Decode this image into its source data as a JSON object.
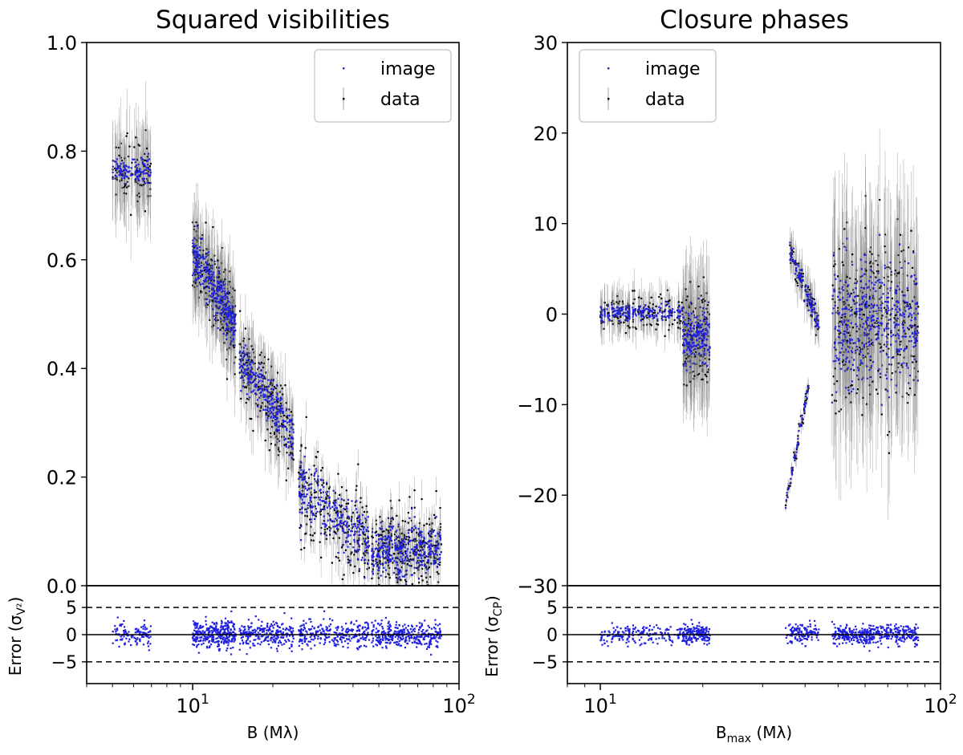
{
  "chart_data": [
    {
      "type": "scatter",
      "title": "Squared visibilities",
      "xlabel": "B (Mλ)",
      "ylabel": "",
      "xscale": "log",
      "xlim": [
        4.0,
        100
      ],
      "ylim": [
        0.0,
        1.0
      ],
      "y_ticks": [
        "0.0",
        "0.2",
        "0.4",
        "0.6",
        "0.8",
        "1.0"
      ],
      "y_tick_values": [
        0.0,
        0.2,
        0.4,
        0.6,
        0.8,
        1.0
      ],
      "x_ticks": [
        {
          "base": "10",
          "exp": "1",
          "value": 10
        },
        {
          "base": "10",
          "exp": "2",
          "value": 100
        }
      ],
      "legend": {
        "position": "top-right",
        "entries": [
          {
            "label": "image",
            "color": "#1f1fe0"
          },
          {
            "label": "data",
            "color": "#000000"
          }
        ]
      },
      "series": [
        {
          "name": "data",
          "color": "#000000",
          "error_bar_color": "#888888",
          "clusters": [
            {
              "x_range": [
                5.0,
                7.0
              ],
              "y_center": 0.77,
              "y_spread": 0.05,
              "err": 0.07,
              "count": 110
            },
            {
              "x_range": [
                10.0,
                14.5
              ],
              "y_start": 0.62,
              "y_end": 0.47,
              "y_spread": 0.05,
              "err": 0.06,
              "count": 320
            },
            {
              "x_range": [
                15.0,
                24.0
              ],
              "y_start": 0.42,
              "y_end": 0.27,
              "y_spread": 0.05,
              "err": 0.05,
              "count": 250
            },
            {
              "x_range": [
                25.0,
                46.0
              ],
              "y_start": 0.18,
              "y_end": 0.07,
              "y_spread": 0.05,
              "err": 0.03,
              "count": 260
            },
            {
              "x_range": [
                47.0,
                86.0
              ],
              "y_center": 0.065,
              "y_spread": 0.04,
              "err": 0.03,
              "count": 330
            }
          ]
        },
        {
          "name": "image",
          "color": "#1f1fe0",
          "clusters": [
            {
              "x_range": [
                5.0,
                7.0
              ],
              "y_center": 0.765,
              "y_spread": 0.015
            },
            {
              "x_range": [
                10.0,
                14.5
              ],
              "y_start": 0.61,
              "y_end": 0.47,
              "y_spread": 0.03
            },
            {
              "x_range": [
                15.0,
                24.0
              ],
              "y_start": 0.41,
              "y_end": 0.27,
              "y_spread": 0.03
            },
            {
              "x_range": [
                25.0,
                46.0
              ],
              "y_start": 0.18,
              "y_end": 0.07,
              "y_spread": 0.04
            },
            {
              "x_range": [
                47.0,
                86.0
              ],
              "y_center": 0.065,
              "y_spread": 0.035
            }
          ]
        }
      ],
      "residuals": {
        "ylabel": "Error (σ",
        "ylabel_sub": "V²",
        "ylabel_close": ")",
        "ylim": [
          -9,
          9
        ],
        "y_ticks": [
          "−5",
          "0",
          "5"
        ],
        "y_tick_values": [
          -5,
          0,
          5
        ],
        "dashed_lines": [
          -5,
          5
        ],
        "solid_line": 0,
        "top_label": "0.0",
        "spread": 1.2
      }
    },
    {
      "type": "scatter",
      "title": "Closure phases",
      "xlabel_main": "B",
      "xlabel_sub": "max",
      "xlabel_unit": " (Mλ)",
      "xscale": "log",
      "xlim": [
        8.0,
        100
      ],
      "ylim": [
        -30,
        30
      ],
      "y_ticks": [
        "−30",
        "−20",
        "−10",
        "0",
        "10",
        "20",
        "30"
      ],
      "y_tick_values": [
        -30,
        -20,
        -10,
        0,
        10,
        20,
        30
      ],
      "x_ticks": [
        {
          "base": "10",
          "exp": "1",
          "value": 10
        },
        {
          "base": "10",
          "exp": "2",
          "value": 100
        }
      ],
      "legend": {
        "position": "top-left",
        "entries": [
          {
            "label": "image",
            "color": "#1f1fe0"
          },
          {
            "label": "data",
            "color": "#000000"
          }
        ]
      },
      "series": [
        {
          "name": "data",
          "color": "#000000",
          "error_bar_color": "#888888",
          "clusters": [
            {
              "x_range": [
                10.0,
                17.5
              ],
              "y_center": 0.0,
              "y_spread": 1.5,
              "err": 2.0,
              "count": 180
            },
            {
              "x_range": [
                17.5,
                21.0
              ],
              "y_center": -2.0,
              "y_spread": 3.0,
              "err": 5.0,
              "count": 180
            },
            {
              "x_range": [
                36.0,
                44.0
              ],
              "y_start": 7.0,
              "y_end": -1.5,
              "y_spread": 1.0,
              "err": 2.0,
              "count": 90
            },
            {
              "x_range": [
                35.0,
                41.0
              ],
              "y_start": -22.0,
              "y_end": -8.0,
              "y_spread": 0.6,
              "err": 0.8,
              "count": 45
            },
            {
              "x_range": [
                48.0,
                86.0
              ],
              "y_center": 0.0,
              "y_spread": 5.0,
              "err": 8.0,
              "count": 420
            }
          ]
        },
        {
          "name": "image",
          "color": "#1f1fe0",
          "clusters": [
            {
              "x_range": [
                10.0,
                17.5
              ],
              "y_center": 0.2,
              "y_spread": 0.6
            },
            {
              "x_range": [
                17.5,
                21.0
              ],
              "y_center": -2.5,
              "y_spread": 2.0
            },
            {
              "x_range": [
                36.0,
                44.0
              ],
              "y_start": 7.0,
              "y_end": -1.5,
              "y_spread": 0.8
            },
            {
              "x_range": [
                35.0,
                41.0
              ],
              "y_start": -21.0,
              "y_end": -8.0,
              "y_spread": 0.5
            },
            {
              "x_range": [
                48.0,
                86.0
              ],
              "y_center": -1.0,
              "y_spread": 5.0
            }
          ]
        }
      ],
      "residuals": {
        "ylabel": "Error (σ",
        "ylabel_sub": "CP",
        "ylabel_close": ")",
        "ylim": [
          -9,
          9
        ],
        "y_ticks": [
          "−5",
          "0",
          "5"
        ],
        "y_tick_values": [
          -5,
          0,
          5
        ],
        "dashed_lines": [
          -5,
          5
        ],
        "solid_line": 0,
        "top_label": "−30",
        "spread": 0.9
      }
    }
  ]
}
